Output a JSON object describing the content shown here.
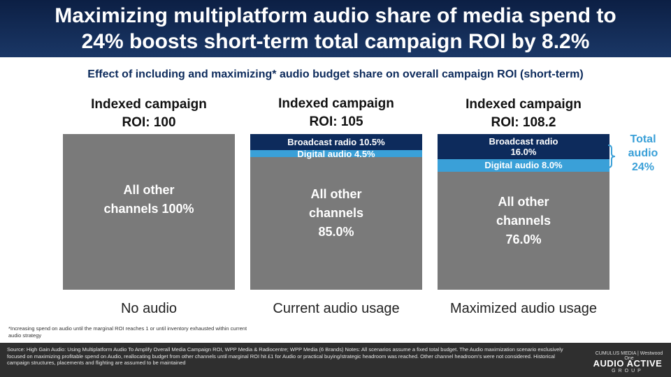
{
  "title": {
    "line1": "Maximizing multiplatform audio share of media spend to",
    "line2": "24% boosts short-term total campaign ROI by 8.2%"
  },
  "subtitle": "Effect of including and maximizing* audio budget share on overall campaign ROI (short-term)",
  "colors": {
    "title_band": "#0c1f44",
    "other_channels": "#7a7a7a",
    "broadcast_radio": "#0d2b5c",
    "digital_audio": "#3aa0d8",
    "total_audio": "#3aa0d8"
  },
  "chart_data": {
    "type": "bar",
    "stacked": true,
    "categories": [
      "No audio",
      "Current audio usage",
      "Maximized audio usage"
    ],
    "roi_headers": [
      {
        "line1": "Indexed campaign",
        "line2": "ROI: 100"
      },
      {
        "line1": "Indexed campaign",
        "line2": "ROI: 105"
      },
      {
        "line1": "Indexed campaign",
        "line2": "ROI: 108.2"
      }
    ],
    "roi_values": [
      100,
      105,
      108.2
    ],
    "series": [
      {
        "name": "All other channels",
        "values": [
          100,
          85.0,
          76.0
        ],
        "labels": [
          [
            "All other",
            "channels 100%"
          ],
          [
            "All other",
            "channels",
            "85.0%"
          ],
          [
            "All other",
            "channels",
            "76.0%"
          ]
        ]
      },
      {
        "name": "Digital audio",
        "values": [
          0,
          4.5,
          8.0
        ],
        "labels": [
          [],
          [
            "Digital audio 4.5%"
          ],
          [
            "Digital audio 8.0%"
          ]
        ]
      },
      {
        "name": "Broadcast radio",
        "values": [
          0,
          10.5,
          16.0
        ],
        "labels": [
          [],
          [
            "Broadcast radio 10.5%"
          ],
          [
            "Broadcast radio",
            "16.0%"
          ]
        ]
      }
    ],
    "annotation": {
      "line1": "Total",
      "line2": "audio",
      "line3": "24%"
    },
    "ylim": [
      0,
      100
    ]
  },
  "footnote": "*Increasing spend on audio until the marginal ROI reaches 1 or until inventory exhausted within current audio strategy",
  "source": "Source: High Gain Audio: Using Multiplatform Audio To Amplify Overall Media Campaign ROI, WPP Media & Radiocentre; WPP Media (6 Brands) Notes: All scenarios assume a fixed total budget. The Audio maximization scenario exclusively focused on maximizing profitable spend on Audio, reallocating budget from other channels until marginal ROI hit £1 for Audio or practical buying/strategic headroom was reached. Other channel headroom's were not considered. Historical campaign structures, placements and flighting are assumed to be maintained",
  "brand": {
    "top": "CUMULUS MEDIA | Westwood One",
    "main": "AUDIO ACTIVE",
    "sub": "GROUP"
  }
}
